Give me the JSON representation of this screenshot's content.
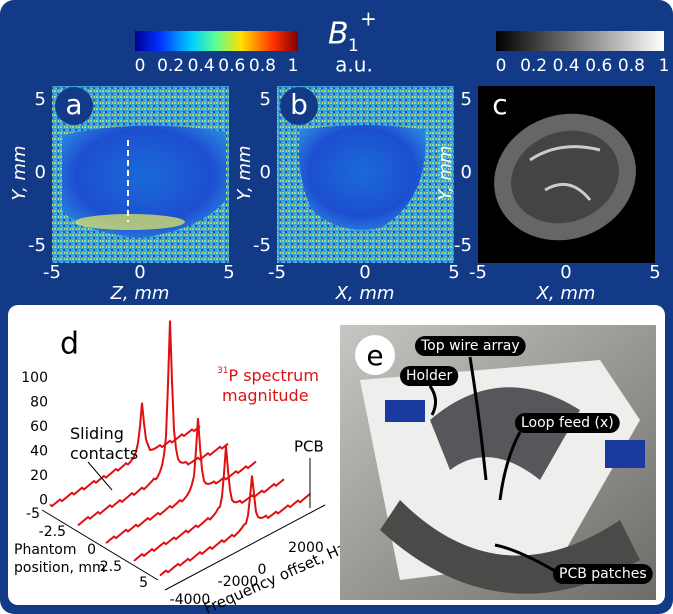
{
  "colorbar_b1": {
    "symbol": "B",
    "subscript": "1",
    "superscript": "+",
    "unit": "a.u.",
    "ticks": [
      "0",
      "0.2",
      "0.4",
      "0.6",
      "0.8",
      "1"
    ]
  },
  "colorbar_gray": {
    "ticks": [
      "0",
      "0.2",
      "0.4",
      "0.6",
      "0.8",
      "1"
    ]
  },
  "panels": [
    {
      "label": "a",
      "xlabel": "Z, mm",
      "ylabel": "Y, mm",
      "xticks": [
        "-5",
        "0",
        "5"
      ],
      "yticks": [
        "5",
        "0",
        "-5"
      ]
    },
    {
      "label": "b",
      "xlabel": "X, mm",
      "ylabel": "Y, mm",
      "xticks": [
        "-5",
        "0",
        "5"
      ],
      "yticks": [
        "5",
        "0",
        "-5"
      ]
    },
    {
      "label": "c",
      "xlabel": "X, mm",
      "ylabel": "Y, mm",
      "xticks": [
        "-5",
        "0",
        "5"
      ],
      "yticks": [
        "5",
        "0",
        "-5"
      ]
    }
  ],
  "panel_d": {
    "label": "d",
    "zticks": [
      "100",
      "80",
      "60",
      "40",
      "20",
      "0"
    ],
    "position_ticks": [
      "-5",
      "-2.5",
      "0",
      "2.5",
      "5"
    ],
    "position_label": [
      "Phantom",
      "position, mm"
    ],
    "frequency_ticks": [
      "-4000",
      "-2000",
      "0",
      "2000"
    ],
    "frequency_label": "Frequency offset, Hz",
    "sliding_contacts": [
      "Sliding",
      "contacts"
    ],
    "spectrum_label": [
      "31",
      "P spectrum",
      "magnitude"
    ],
    "pcb": "PCB"
  },
  "panel_e": {
    "label": "e",
    "callouts": [
      "Top wire array",
      "Holder",
      "Loop feed (x)",
      "PCB patches"
    ]
  }
}
